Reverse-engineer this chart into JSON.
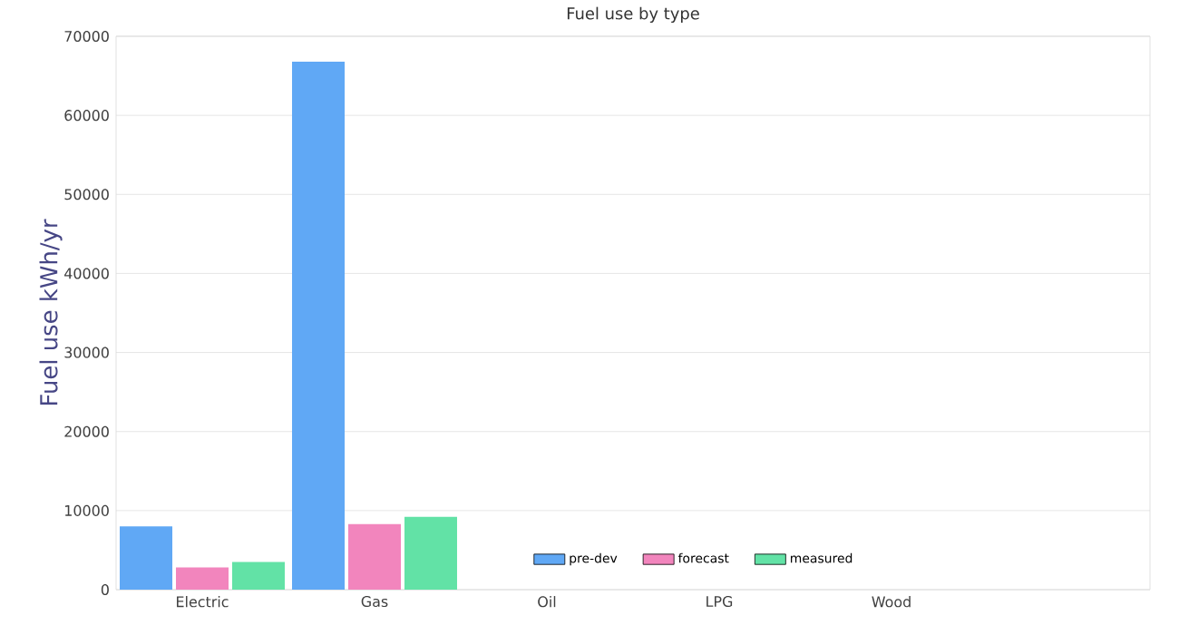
{
  "chart_data": {
    "type": "bar",
    "title": "Fuel use by type",
    "ylabel": "Fuel use  kWh/yr",
    "categories": [
      "Electric",
      "Gas",
      "Oil",
      "LPG",
      "Wood",
      null
    ],
    "series": [
      {
        "name": "pre-dev",
        "color": "#60a8f5",
        "values": [
          8000,
          66800,
          0,
          0,
          0,
          0
        ]
      },
      {
        "name": "forecast",
        "color": "#f285bd",
        "values": [
          2800,
          8300,
          0,
          0,
          0,
          0
        ]
      },
      {
        "name": "measured",
        "color": "#62e2a6",
        "values": [
          3500,
          9200,
          0,
          0,
          0,
          0
        ]
      }
    ],
    "ylim": [
      0,
      70000
    ],
    "yticks": [
      0,
      10000,
      20000,
      30000,
      40000,
      50000,
      60000,
      70000
    ],
    "grid": "y",
    "legend": "bottom"
  }
}
